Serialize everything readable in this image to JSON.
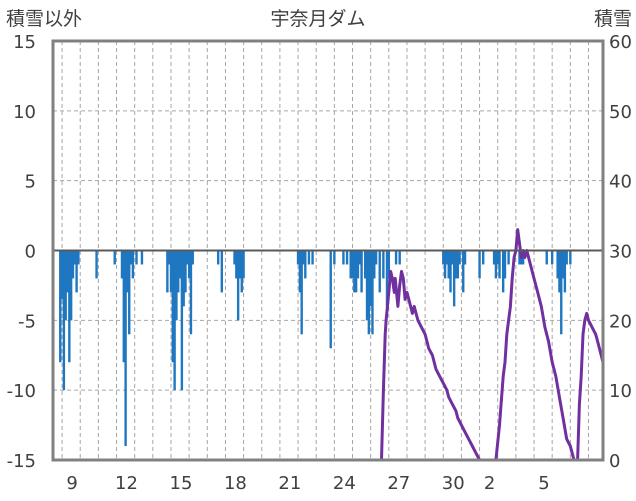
{
  "chart_data": {
    "type": "bar+line",
    "title": "宇奈月ダム",
    "left_axis": {
      "label": "積雪以外",
      "ylim": [
        -15,
        15
      ],
      "ticks": [
        15,
        10,
        5,
        0,
        -5,
        -10,
        -15
      ]
    },
    "right_axis": {
      "label": "積雪",
      "ylim": [
        0,
        60
      ],
      "ticks": [
        60,
        50,
        40,
        30,
        20,
        10,
        0
      ]
    },
    "x_axis": {
      "tick_labels": [
        "9",
        "12",
        "15",
        "18",
        "21",
        "24",
        "27",
        "30",
        "2",
        "5"
      ],
      "num_days": 30,
      "grid": "dashed-vertical"
    },
    "series": [
      {
        "kind": "bar",
        "axis": "left",
        "color": "#1f77c0",
        "points": [
          [
            7.9,
            -8
          ],
          [
            8.0,
            -3.5
          ],
          [
            8.1,
            -10
          ],
          [
            8.2,
            -5
          ],
          [
            8.3,
            -3
          ],
          [
            8.4,
            -8
          ],
          [
            8.5,
            -5
          ],
          [
            8.6,
            -2
          ],
          [
            8.7,
            -1
          ],
          [
            8.8,
            -3
          ],
          [
            8.9,
            -1
          ],
          [
            9.9,
            -2
          ],
          [
            10.9,
            -1
          ],
          [
            11.3,
            -2
          ],
          [
            11.4,
            -8
          ],
          [
            11.5,
            -14
          ],
          [
            11.6,
            -3
          ],
          [
            11.7,
            -6
          ],
          [
            11.8,
            -1
          ],
          [
            11.9,
            -2
          ],
          [
            12.1,
            -1
          ],
          [
            12.4,
            -1
          ],
          [
            13.8,
            -3
          ],
          [
            13.9,
            -1
          ],
          [
            14.0,
            -3
          ],
          [
            14.1,
            -8
          ],
          [
            14.2,
            -10
          ],
          [
            14.3,
            -5
          ],
          [
            14.4,
            -3
          ],
          [
            14.5,
            -2
          ],
          [
            14.6,
            -10
          ],
          [
            14.7,
            -4
          ],
          [
            14.8,
            -3
          ],
          [
            14.9,
            -1
          ],
          [
            15.0,
            -2
          ],
          [
            15.1,
            -6
          ],
          [
            15.2,
            -1
          ],
          [
            16.6,
            -1
          ],
          [
            16.8,
            -3
          ],
          [
            17.5,
            -1
          ],
          [
            17.6,
            -2
          ],
          [
            17.7,
            -5
          ],
          [
            17.8,
            -2
          ],
          [
            17.9,
            -3
          ],
          [
            18.0,
            -2
          ],
          [
            21.0,
            -1
          ],
          [
            21.1,
            -3
          ],
          [
            21.2,
            -6
          ],
          [
            21.3,
            -1
          ],
          [
            21.4,
            -2
          ],
          [
            21.6,
            -1
          ],
          [
            21.8,
            -1
          ],
          [
            22.8,
            -7
          ],
          [
            23.0,
            -1
          ],
          [
            23.5,
            -1
          ],
          [
            23.7,
            -1
          ],
          [
            23.9,
            -2
          ],
          [
            24.0,
            -2
          ],
          [
            24.1,
            -3
          ],
          [
            24.2,
            -3
          ],
          [
            24.3,
            -2
          ],
          [
            24.4,
            -1
          ],
          [
            24.5,
            -3
          ],
          [
            24.7,
            -2
          ],
          [
            24.8,
            -5
          ],
          [
            24.9,
            -6
          ],
          [
            25.0,
            -4
          ],
          [
            25.1,
            -6
          ],
          [
            25.2,
            -2
          ],
          [
            25.3,
            -1
          ],
          [
            25.5,
            -3
          ],
          [
            25.7,
            -2
          ],
          [
            25.9,
            -4
          ],
          [
            26.0,
            -2
          ],
          [
            26.4,
            -1
          ],
          [
            26.6,
            -1
          ],
          [
            29.0,
            -1
          ],
          [
            29.1,
            -2
          ],
          [
            29.2,
            -1
          ],
          [
            29.3,
            -2
          ],
          [
            29.4,
            -3
          ],
          [
            29.5,
            -1
          ],
          [
            29.6,
            -4
          ],
          [
            29.7,
            -2
          ],
          [
            29.8,
            -2
          ],
          [
            29.9,
            -1
          ],
          [
            30.1,
            -3
          ],
          [
            30.2,
            -1
          ],
          [
            31.0,
            -2
          ],
          [
            31.2,
            -1
          ],
          [
            31.8,
            -1
          ],
          [
            31.9,
            -2
          ],
          [
            32.0,
            -1
          ],
          [
            32.1,
            -2
          ],
          [
            32.3,
            -3
          ],
          [
            32.4,
            -2
          ],
          [
            32.6,
            -1
          ],
          [
            33.2,
            -1
          ],
          [
            33.3,
            -1
          ],
          [
            33.4,
            -1
          ],
          [
            34.7,
            -1
          ],
          [
            35.0,
            -1
          ],
          [
            35.3,
            -2
          ],
          [
            35.4,
            -3
          ],
          [
            35.5,
            -6
          ],
          [
            35.6,
            -2
          ],
          [
            35.7,
            -3
          ],
          [
            35.8,
            -1
          ],
          [
            36.0,
            -1
          ]
        ]
      },
      {
        "kind": "line",
        "axis": "right",
        "color": "#7030a0",
        "points": [
          [
            7.5,
            0
          ],
          [
            25.6,
            0
          ],
          [
            25.7,
            10
          ],
          [
            25.8,
            18
          ],
          [
            25.85,
            20
          ],
          [
            26.0,
            24
          ],
          [
            26.1,
            27
          ],
          [
            26.2,
            26
          ],
          [
            26.3,
            24
          ],
          [
            26.35,
            26
          ],
          [
            26.5,
            22
          ],
          [
            26.6,
            25
          ],
          [
            26.7,
            27
          ],
          [
            26.8,
            26
          ],
          [
            26.9,
            23
          ],
          [
            27.0,
            24
          ],
          [
            27.1,
            23
          ],
          [
            27.2,
            22
          ],
          [
            27.3,
            21
          ],
          [
            27.4,
            22
          ],
          [
            27.6,
            20
          ],
          [
            27.8,
            19
          ],
          [
            28.0,
            18
          ],
          [
            28.2,
            16
          ],
          [
            28.4,
            15
          ],
          [
            28.6,
            13
          ],
          [
            28.8,
            12
          ],
          [
            29.0,
            11
          ],
          [
            29.2,
            10
          ],
          [
            29.3,
            9
          ],
          [
            29.5,
            8
          ],
          [
            29.7,
            7
          ],
          [
            29.8,
            6
          ],
          [
            30.0,
            5
          ],
          [
            30.2,
            4
          ],
          [
            30.4,
            3
          ],
          [
            30.6,
            2
          ],
          [
            30.8,
            1
          ],
          [
            31.0,
            0
          ],
          [
            31.9,
            0
          ],
          [
            32.1,
            5
          ],
          [
            32.3,
            12
          ],
          [
            32.4,
            14
          ],
          [
            32.5,
            18
          ],
          [
            32.6,
            20
          ],
          [
            32.7,
            22
          ],
          [
            32.8,
            26
          ],
          [
            32.9,
            29
          ],
          [
            33.0,
            30
          ],
          [
            33.1,
            33
          ],
          [
            33.2,
            31
          ],
          [
            33.3,
            29
          ],
          [
            33.4,
            30
          ],
          [
            33.5,
            29
          ],
          [
            33.6,
            30
          ],
          [
            33.8,
            28
          ],
          [
            34.0,
            26
          ],
          [
            34.2,
            24
          ],
          [
            34.4,
            22
          ],
          [
            34.6,
            19
          ],
          [
            34.8,
            17
          ],
          [
            35.0,
            14
          ],
          [
            35.2,
            12
          ],
          [
            35.4,
            9
          ],
          [
            35.6,
            6
          ],
          [
            35.8,
            3
          ],
          [
            36.0,
            2
          ],
          [
            36.2,
            0
          ],
          [
            36.4,
            0
          ],
          [
            36.5,
            8
          ],
          [
            36.6,
            12
          ],
          [
            36.7,
            18
          ],
          [
            36.8,
            20
          ],
          [
            36.9,
            21
          ],
          [
            37.0,
            20
          ],
          [
            37.2,
            19
          ],
          [
            37.4,
            18
          ],
          [
            37.5,
            17
          ],
          [
            37.6,
            16
          ],
          [
            37.7,
            15
          ],
          [
            37.8,
            14
          ]
        ]
      }
    ]
  }
}
